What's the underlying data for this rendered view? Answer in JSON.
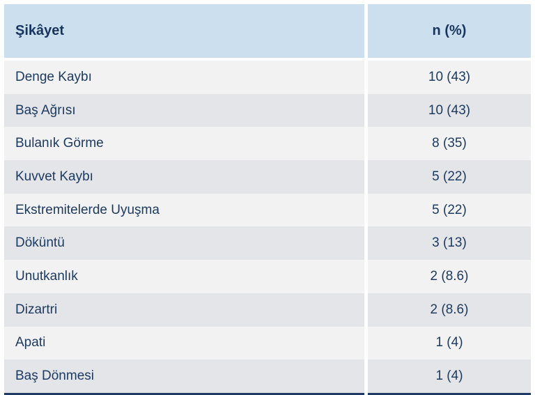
{
  "table": {
    "columns": [
      {
        "label": "Şikâyet"
      },
      {
        "label": "n (%)"
      }
    ],
    "rows": [
      {
        "complaint": "Denge Kaybı",
        "value": "10 (43)"
      },
      {
        "complaint": "Baş Ağrısı",
        "value": "10 (43)"
      },
      {
        "complaint": "Bulanık Görme",
        "value": "8 (35)"
      },
      {
        "complaint": "Kuvvet Kaybı",
        "value": "5 (22)"
      },
      {
        "complaint": "Ekstremitelerde Uyuşma",
        "value": "5 (22)"
      },
      {
        "complaint": "Döküntü",
        "value": "3 (13)"
      },
      {
        "complaint": "Unutkanlık",
        "value": "2 (8.6)"
      },
      {
        "complaint": "Dizartri",
        "value": "2 (8.6)"
      },
      {
        "complaint": "Apati",
        "value": "1 (4)"
      },
      {
        "complaint": "Baş Dönmesi",
        "value": "1 (4)"
      }
    ],
    "colors": {
      "header_bg": "#cbdfee",
      "header_text": "#17355d",
      "text_navy": "#1d3a60",
      "row_light": "#f2f2f3",
      "row_dark": "#e4e5e8",
      "next_section_bar": "#1f3864"
    }
  },
  "chart_data": {
    "type": "table",
    "title": "",
    "columns": [
      "Şikâyet",
      "n (%)"
    ],
    "rows": [
      [
        "Denge Kaybı",
        "10 (43)"
      ],
      [
        "Baş Ağrısı",
        "10 (43)"
      ],
      [
        "Bulanık Görme",
        "8 (35)"
      ],
      [
        "Kuvvet Kaybı",
        "5 (22)"
      ],
      [
        "Ekstremitelerde Uyuşma",
        "5 (22)"
      ],
      [
        "Döküntü",
        "3 (13)"
      ],
      [
        "Unutkanlık",
        "2 (8.6)"
      ],
      [
        "Dizartri",
        "2 (8.6)"
      ],
      [
        "Apati",
        "1 (4)"
      ],
      [
        "Baş Dönmesi",
        "1 (4)"
      ]
    ],
    "layout": {
      "header_background": "#cbdfee",
      "alternating_rows": true,
      "value_column_alignment": "center"
    }
  }
}
